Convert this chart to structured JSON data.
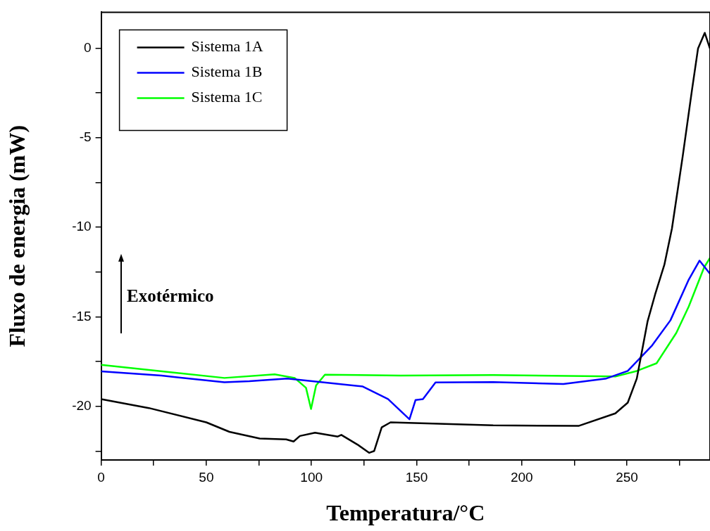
{
  "chart_data": {
    "type": "line",
    "xlabel": "Temperatura/°C",
    "ylabel": "Fluxo de energia (mW)",
    "annotations": [
      "Exotérmico"
    ],
    "xlim": [
      0,
      289.5
    ],
    "ylim": [
      -23,
      2
    ],
    "xticks": [
      0,
      {
        "value": 25,
        "label": null
      },
      50,
      {
        "value": 75,
        "label": null
      },
      100,
      {
        "value": 125,
        "label": null
      },
      150,
      {
        "value": 175,
        "label": null
      },
      200,
      {
        "value": 225,
        "label": null
      },
      250,
      {
        "value": 275,
        "label": null
      }
    ],
    "yticks": [
      {
        "value": -22.5,
        "label": null
      },
      -20,
      {
        "value": -17.5,
        "label": null
      },
      -15,
      {
        "value": -12.5,
        "label": null
      },
      -10,
      {
        "value": -7.5,
        "label": null
      },
      -5,
      {
        "value": -2.5,
        "label": null
      },
      0
    ],
    "legend": "top left",
    "grid": false,
    "marker": "none",
    "line_style": "solid",
    "series": [
      {
        "name": "Sistema 1A",
        "color": "#000000",
        "x": [
          0,
          22.7,
          50,
          61,
          75.4,
          88,
          91.5,
          94.5,
          101.7,
          112.5,
          114.2,
          122,
          127.4,
          129.8,
          133.4,
          137.6,
          186.4,
          227,
          244.5,
          250.4,
          254.7,
          259.8,
          263.4,
          267.8,
          271.4,
          276.5,
          280.9,
          283.8,
          287,
          289.5
        ],
        "values": [
          -19.6,
          -20.1,
          -20.9,
          -21.43,
          -21.8,
          -21.85,
          -21.97,
          -21.66,
          -21.48,
          -21.69,
          -21.6,
          -22.15,
          -22.6,
          -22.5,
          -21.18,
          -20.9,
          -21.07,
          -21.1,
          -20.4,
          -19.8,
          -18.45,
          -15.27,
          -13.76,
          -12.1,
          -10.08,
          -6.06,
          -2.37,
          -0.03,
          0.85,
          -0.03
        ]
      },
      {
        "name": "Sistema 1B",
        "color": "#0000ff",
        "x": [
          0,
          28.7,
          58.6,
          70.5,
          88.5,
          124.4,
          136.4,
          146.6,
          149.5,
          153,
          159,
          186.4,
          219.8,
          240.2,
          250.4,
          262,
          270.7,
          279.4,
          284.5,
          289.5
        ],
        "values": [
          -18.05,
          -18.29,
          -18.66,
          -18.6,
          -18.45,
          -18.9,
          -19.6,
          -20.73,
          -19.65,
          -19.6,
          -18.67,
          -18.65,
          -18.76,
          -18.45,
          -18.03,
          -16.6,
          -15.2,
          -12.93,
          -11.87,
          -12.6
        ]
      },
      {
        "name": "Sistema 1C",
        "color": "#00ff00",
        "x": [
          0,
          58.6,
          82.5,
          92,
          97.4,
          99.8,
          102.2,
          106.4,
          142.3,
          186.4,
          244.5,
          254.7,
          264.1,
          273.5,
          279.4,
          286.7,
          289.5
        ],
        "values": [
          -17.69,
          -18.42,
          -18.22,
          -18.42,
          -18.97,
          -20.15,
          -18.84,
          -18.24,
          -18.29,
          -18.26,
          -18.34,
          -18.03,
          -17.6,
          -15.9,
          -14.43,
          -12.25,
          -11.72
        ]
      }
    ]
  }
}
